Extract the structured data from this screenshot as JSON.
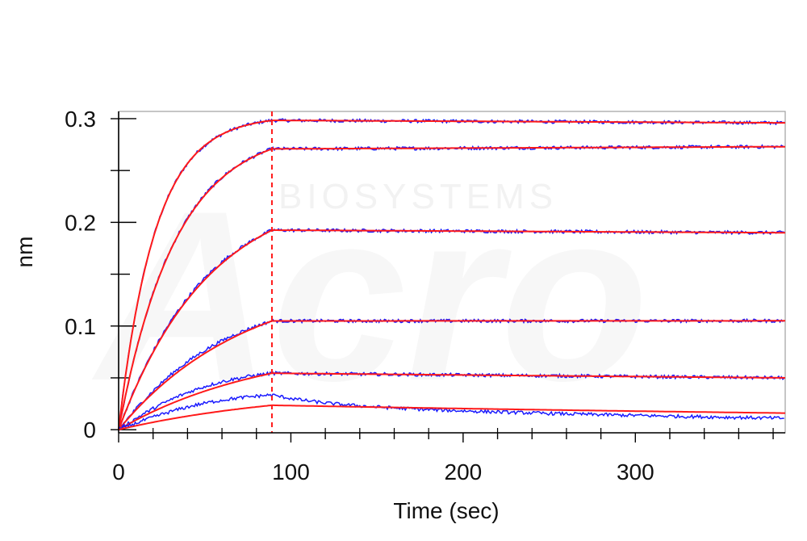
{
  "chart_data": {
    "type": "line",
    "title": "",
    "xlabel": "Time (sec)",
    "ylabel": "nm",
    "xlim": [
      0,
      387
    ],
    "ylim": [
      -0.003,
      0.307
    ],
    "x_ticks": [
      0,
      100,
      200,
      300
    ],
    "x_tick_labels": [
      "0",
      "100",
      "200",
      "300"
    ],
    "y_ticks": [
      0,
      0.1,
      0.2,
      0.3
    ],
    "y_tick_labels": [
      "0",
      "0.1",
      "0.2",
      "0.3"
    ],
    "association_end": 89,
    "watermark": "BIOSYSTEMS",
    "colors": {
      "measured": "#1a1aff",
      "fit": "#ff1a1a",
      "marker": "#ff1a1a",
      "axis": "#000000",
      "frame": "#a0a0a0"
    },
    "series": [
      {
        "plateau": 0.303,
        "kon_rate": 0.047,
        "end": 0.296,
        "wave": 0.0
      },
      {
        "plateau": 0.291,
        "kon_rate": 0.03,
        "end": 0.273,
        "wave": 0.0005
      },
      {
        "plateau": 0.236,
        "kon_rate": 0.019,
        "end": 0.19,
        "wave": 0.0015
      },
      {
        "plateau": 0.15,
        "kon_rate": 0.0135,
        "end": 0.105,
        "wave": 0.003
      },
      {
        "plateau": 0.085,
        "kon_rate": 0.0115,
        "end": 0.05,
        "wave": 0.0045
      },
      {
        "plateau": 0.041,
        "kon_rate": 0.0096,
        "end": 0.016,
        "wave": 0.005,
        "meas_end": 0.011,
        "meas_bump": 0.01
      }
    ]
  }
}
